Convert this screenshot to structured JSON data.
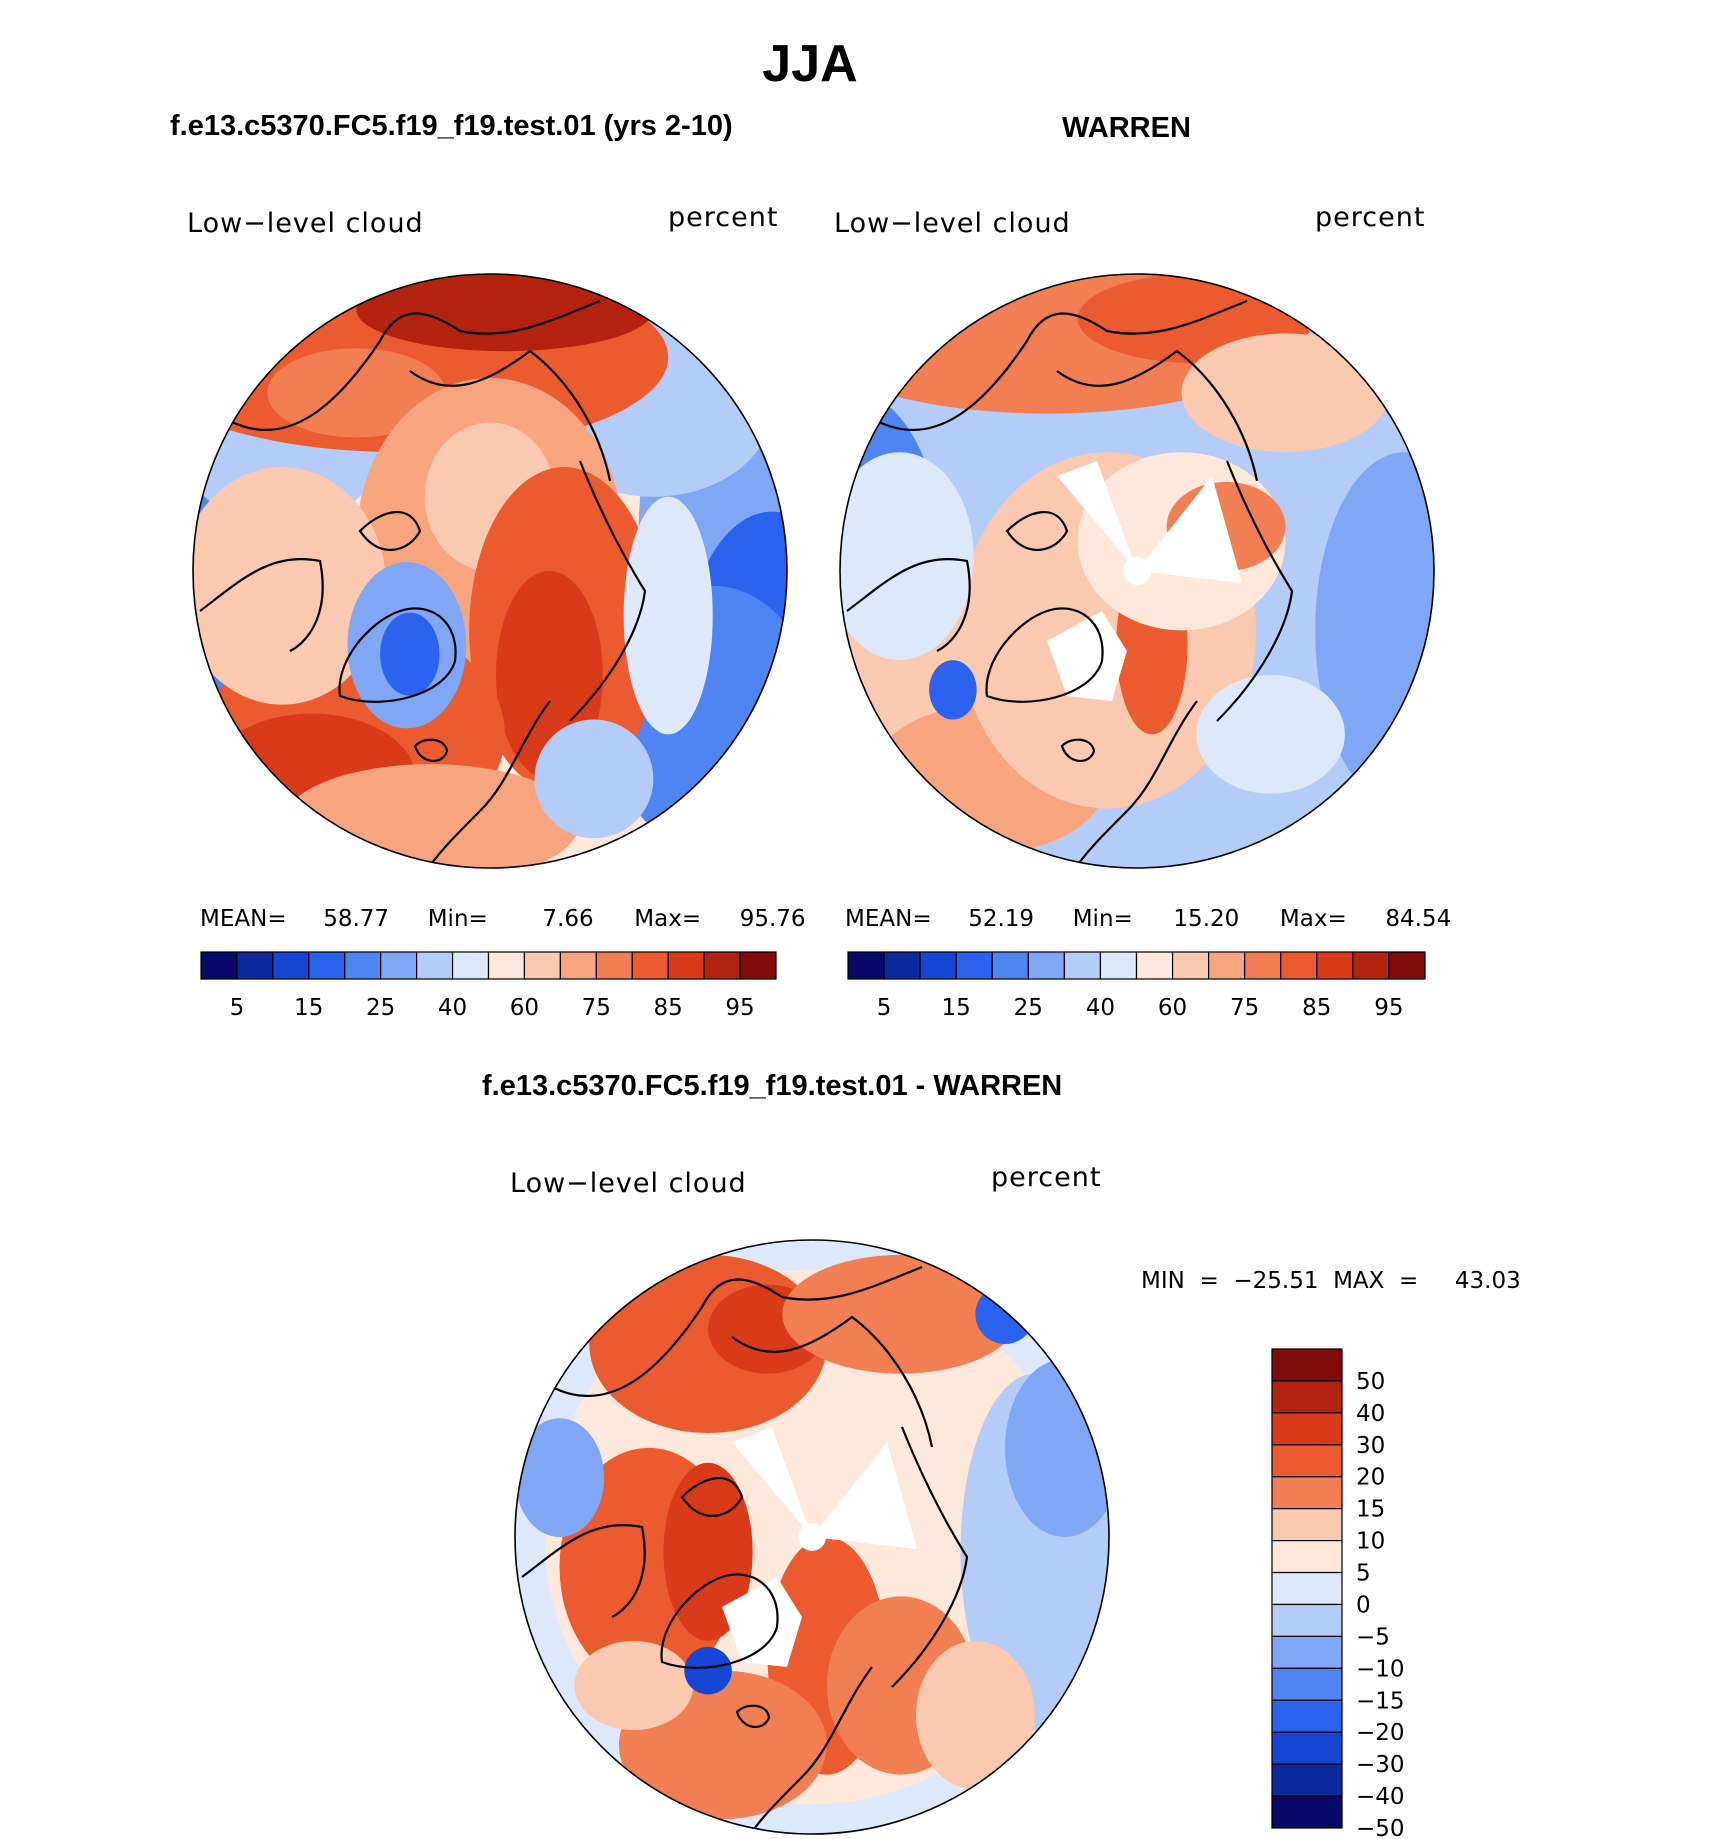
{
  "page": {
    "title": "JJA"
  },
  "colors": {
    "model_scale": [
      "#08086b",
      "#0b2aa0",
      "#1546d4",
      "#2b63ee",
      "#4f84f3",
      "#7fa7f5",
      "#b4ccf8",
      "#dde9fb",
      "#fde8db",
      "#fbc9b0",
      "#f7a47f",
      "#f27e54",
      "#ec5a30",
      "#d93b1a",
      "#b42210",
      "#820b0b"
    ],
    "diff_scale": [
      "#820b0b",
      "#b42210",
      "#d93b1a",
      "#ec5a30",
      "#f27e54",
      "#fbc9b0",
      "#fde8db",
      "#dde9fb",
      "#b4ccf8",
      "#7fa7f5",
      "#4f84f3",
      "#2b63ee",
      "#1546d4",
      "#0b2aa0",
      "#08086b"
    ]
  },
  "panels": {
    "model": {
      "title": "f.e13.c5370.FC5.f19_f19.test.01 (yrs 2-10)",
      "variable": "Low−level cloud",
      "units": "percent",
      "stats": {
        "mean_label": "MEAN=",
        "mean": "58.77",
        "min_label": "Min=",
        "min": "7.66",
        "max_label": "Max=",
        "max": "95.76"
      },
      "colorbar_ticks": [
        "5",
        "15",
        "25",
        "40",
        "60",
        "75",
        "85",
        "95"
      ]
    },
    "obs": {
      "title": "WARREN",
      "variable": "Low−level cloud",
      "units": "percent",
      "stats": {
        "mean_label": "MEAN=",
        "mean": "52.19",
        "min_label": "Min=",
        "min": "15.20",
        "max_label": "Max=",
        "max": "84.54"
      },
      "colorbar_ticks": [
        "5",
        "15",
        "25",
        "40",
        "60",
        "75",
        "85",
        "95"
      ]
    },
    "diff": {
      "title": "f.e13.c5370.FC5.f19_f19.test.01 - WARREN",
      "variable": "Low−level cloud",
      "units": "percent",
      "stats_line": "MIN  =  −25.51  MAX  =     43.03",
      "colorbar_labels": [
        "50",
        "40",
        "30",
        "20",
        "15",
        "10",
        "5",
        "0",
        "−5",
        "−10",
        "−15",
        "−20",
        "−30",
        "−40",
        "−50"
      ]
    }
  },
  "chart_data": [
    {
      "type": "heatmap",
      "projection": "north-polar-stereographic",
      "title": "f.e13.c5370.FC5.f19_f19.test.01 (yrs 2-10)",
      "variable": "Low-level cloud",
      "units": "percent",
      "mean": 58.77,
      "min": 7.66,
      "max": 95.76,
      "contour_levels": [
        5,
        10,
        15,
        20,
        25,
        30,
        40,
        50,
        60,
        70,
        75,
        80,
        85,
        90,
        95
      ]
    },
    {
      "type": "heatmap",
      "projection": "north-polar-stereographic",
      "title": "WARREN",
      "variable": "Low-level cloud",
      "units": "percent",
      "mean": 52.19,
      "min": 15.2,
      "max": 84.54,
      "contour_levels": [
        5,
        10,
        15,
        20,
        25,
        30,
        40,
        50,
        60,
        70,
        75,
        80,
        85,
        90,
        95
      ]
    },
    {
      "type": "heatmap",
      "projection": "north-polar-stereographic",
      "title": "f.e13.c5370.FC5.f19_f19.test.01 - WARREN",
      "variable": "Low-level cloud",
      "units": "percent",
      "min": -25.51,
      "max": 43.03,
      "contour_levels": [
        -50,
        -40,
        -30,
        -20,
        -15,
        -10,
        -5,
        0,
        5,
        10,
        15,
        20,
        30,
        40,
        50
      ]
    }
  ]
}
